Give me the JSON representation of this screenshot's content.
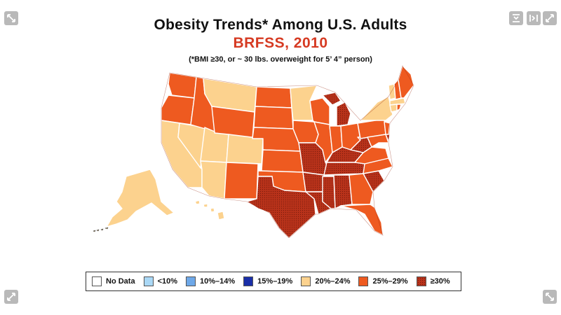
{
  "title": "Obesity Trends* Among U.S. Adults",
  "subtitle": "BRFSS, 2010",
  "note": "(*BMI ≥30, or ~ 30 lbs. overweight for 5’ 4” person)",
  "colors": {
    "no_data": "#ffffff",
    "lt10": "#aad8f6",
    "p10_14": "#6ea8e8",
    "p15_19": "#1a2fa8",
    "p20_24": "#fcd28e",
    "p25_29": "#ee5a20",
    "p30": "#b8321a"
  },
  "legend": [
    {
      "label": "No Data",
      "color": "#ffffff"
    },
    {
      "label": "<10%",
      "color": "#aad8f6"
    },
    {
      "label": "10%–14%",
      "color": "#6ea8e8"
    },
    {
      "label": "15%–19%",
      "color": "#1a2fa8"
    },
    {
      "label": "20%–24%",
      "color": "#fcd28e"
    },
    {
      "label": "25%–29%",
      "color": "#ee5a20"
    },
    {
      "label": "≥30%",
      "color": "#b8321a"
    }
  ],
  "controls": {
    "top_left": "expand-icon",
    "top_right": [
      "collapse-icon",
      "split-icon",
      "fullscreen-icon"
    ],
    "bottom_left": "expand-icon",
    "bottom_right": "expand-icon"
  }
}
